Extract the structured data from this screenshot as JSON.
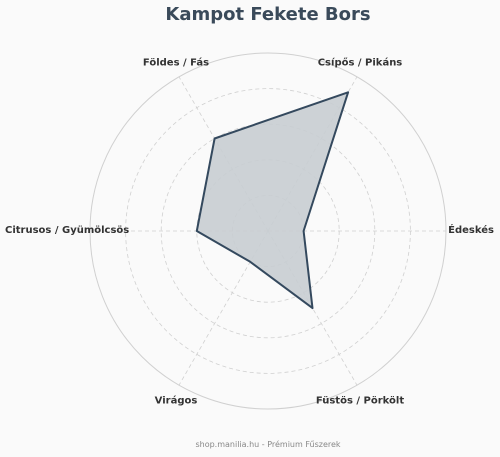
{
  "chart_data": {
    "type": "radar",
    "title": "Kampot Fekete Bors",
    "axes": [
      "Édeskés",
      "Csípős / Pikáns",
      "Földes / Fás",
      "Citrusos / Gyümölcsös",
      "Virágos",
      "Füstös / Pörkölt"
    ],
    "values": [
      2,
      9,
      6,
      4,
      2,
      5
    ],
    "rmax": 10,
    "ring_count": 5,
    "grid": true,
    "colors": {
      "fill": "#c8cdd1",
      "stroke": "#34495e",
      "grid": "#d0d0d0",
      "title": "#3a4a5a"
    }
  },
  "footer": "shop.manilia.hu - Prémium Fűszerek"
}
